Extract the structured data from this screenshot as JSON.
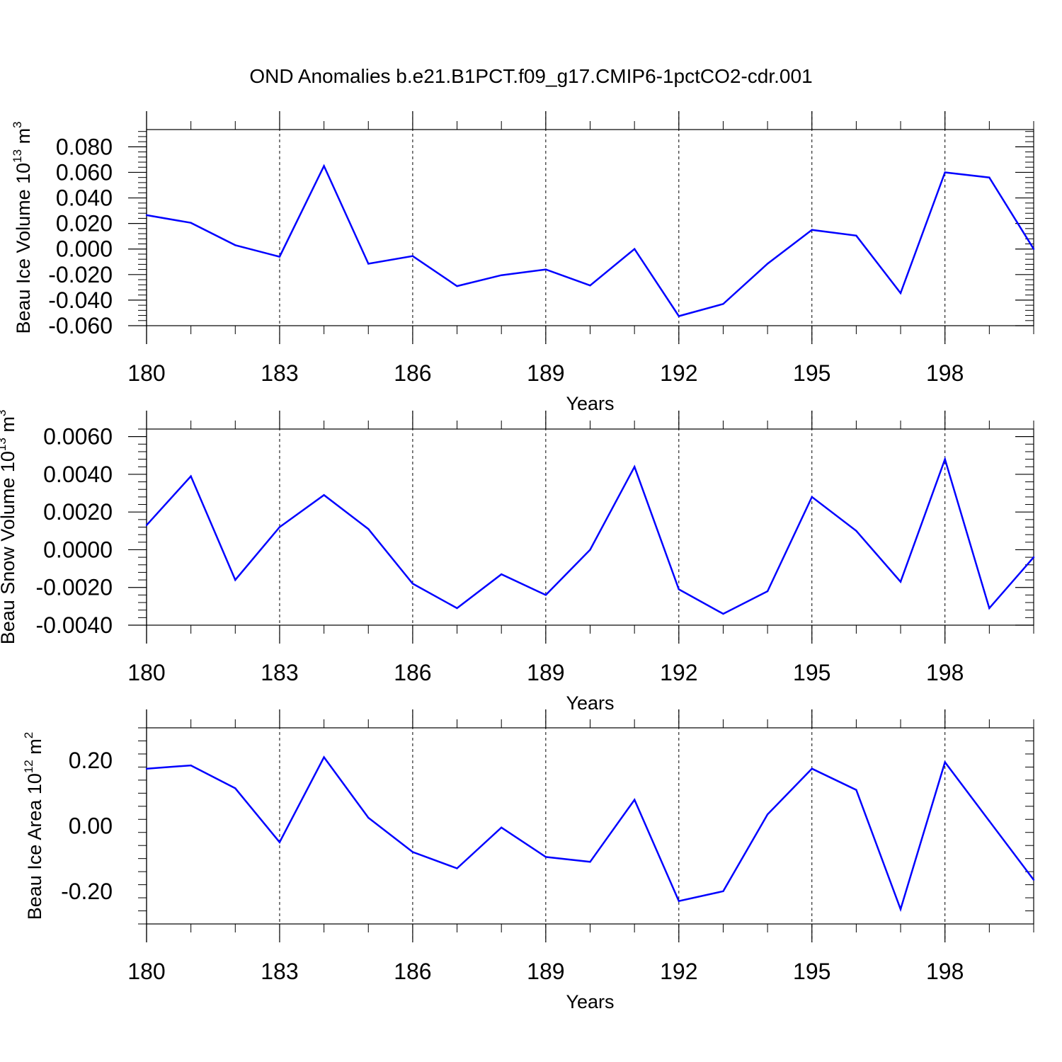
{
  "title": "OND Anomalies b.e21.B1PCT.f09_g17.CMIP6-1pctCO2-cdr.001",
  "line_color": "#0000ff",
  "chart_data": [
    {
      "type": "line",
      "ylabel": "Beau Ice Volume 10",
      "ylabel_exp": "13",
      "ylabel_unit": "m",
      "ylabel_unit_exp": "3",
      "xlabel": "Years",
      "x": [
        180,
        181,
        182,
        183,
        184,
        185,
        186,
        187,
        188,
        189,
        190,
        191,
        192,
        193,
        194,
        195,
        196,
        197,
        198,
        199,
        200
      ],
      "values": [
        0.0265,
        0.0205,
        0.003,
        -0.006,
        0.065,
        -0.0115,
        -0.0055,
        -0.029,
        -0.0205,
        -0.016,
        -0.0285,
        0.0,
        -0.0525,
        -0.043,
        -0.0115,
        0.015,
        0.0105,
        -0.0345,
        0.06,
        0.056,
        0.0
      ],
      "xlim": [
        180,
        200
      ],
      "ylim": [
        -0.06,
        0.0935
      ],
      "yticks": [
        -0.06,
        -0.04,
        -0.02,
        0.0,
        0.02,
        0.04,
        0.06,
        0.08
      ],
      "ytick_labels": [
        "-0.060",
        "-0.040",
        "-0.020",
        "0.000",
        "0.020",
        "0.040",
        "0.060",
        "0.080"
      ],
      "xticks": [
        180,
        183,
        186,
        189,
        192,
        195,
        198
      ],
      "xtick_labels": [
        "180",
        "183",
        "186",
        "189",
        "192",
        "195",
        "198"
      ]
    },
    {
      "type": "line",
      "ylabel": "Beau Snow Volume 10",
      "ylabel_exp": "13",
      "ylabel_unit": "m",
      "ylabel_unit_exp": "3",
      "xlabel": "Years",
      "x": [
        180,
        181,
        182,
        183,
        184,
        185,
        186,
        187,
        188,
        189,
        190,
        191,
        192,
        193,
        194,
        195,
        196,
        197,
        198,
        199,
        200
      ],
      "values": [
        0.0013,
        0.0039,
        -0.0016,
        0.0012,
        0.0029,
        0.0011,
        -0.0018,
        -0.0031,
        -0.0013,
        -0.0024,
        0.0,
        0.0044,
        -0.0021,
        -0.0034,
        -0.0022,
        0.0028,
        0.001,
        -0.0017,
        0.0048,
        -0.0031,
        -0.0004
      ],
      "xlim": [
        180,
        200
      ],
      "ylim": [
        -0.004,
        0.0064
      ],
      "yticks": [
        -0.004,
        -0.002,
        0.0,
        0.002,
        0.004,
        0.006
      ],
      "ytick_labels": [
        "-0.0040",
        "-0.0020",
        "0.0000",
        "0.0020",
        "0.0040",
        "0.0060"
      ],
      "xticks": [
        180,
        183,
        186,
        189,
        192,
        195,
        198
      ],
      "xtick_labels": [
        "180",
        "183",
        "186",
        "189",
        "192",
        "195",
        "198"
      ]
    },
    {
      "type": "line",
      "ylabel": "Beau Ice Area 10",
      "ylabel_exp": "12",
      "ylabel_unit": "m",
      "ylabel_unit_exp": "2",
      "xlabel": "Years",
      "x": [
        180,
        181,
        182,
        183,
        184,
        185,
        186,
        187,
        188,
        189,
        190,
        191,
        192,
        193,
        194,
        195,
        196,
        197,
        198,
        199,
        200
      ],
      "values": [
        0.175,
        0.185,
        0.115,
        -0.05,
        0.21,
        0.025,
        -0.08,
        -0.13,
        -0.005,
        -0.095,
        -0.11,
        0.08,
        -0.23,
        -0.2,
        0.035,
        0.175,
        0.11,
        -0.255,
        0.195,
        0.015,
        -0.165
      ],
      "xlim": [
        180,
        200
      ],
      "ylim": [
        -0.3,
        0.3
      ],
      "yticks": [
        -0.2,
        0.0,
        0.2
      ],
      "ytick_labels": [
        "-0.20",
        "0.00",
        "0.20"
      ],
      "xticks": [
        180,
        183,
        186,
        189,
        192,
        195,
        198
      ],
      "xtick_labels": [
        "180",
        "183",
        "186",
        "189",
        "192",
        "195",
        "198"
      ]
    }
  ]
}
